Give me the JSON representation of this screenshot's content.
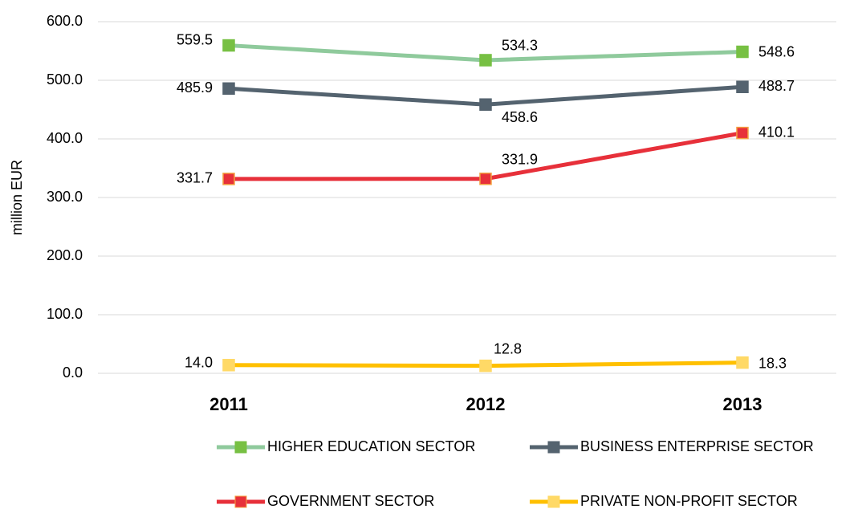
{
  "chart_data": {
    "type": "line",
    "y_label": "million EUR",
    "categories": [
      "2011",
      "2012",
      "2013"
    ],
    "series": [
      {
        "name": "HIGHER EDUCATION SECTOR",
        "color": "#8fca9c",
        "marker_color": "#77c043",
        "values": [
          559.5,
          534.3,
          548.6
        ],
        "value_labels": [
          "559.5",
          "534.3",
          "548.6"
        ]
      },
      {
        "name": "BUSINESS ENTERPRISE SECTOR",
        "color": "#54636f",
        "marker_color": "#54636f",
        "values": [
          485.9,
          458.6,
          488.7
        ],
        "value_labels": [
          "485.9",
          "458.6",
          "488.7"
        ]
      },
      {
        "name": "GOVERNMENT SECTOR",
        "color": "#e7303a",
        "marker_color": "#e7303a",
        "values": [
          331.7,
          331.9,
          410.1
        ],
        "value_labels": [
          "331.7",
          "331.9",
          "410.1"
        ]
      },
      {
        "name": "PRIVATE NON-PROFIT SECTOR",
        "color": "#ffc000",
        "marker_color": "#ffd966",
        "values": [
          14.0,
          12.8,
          18.3
        ],
        "value_labels": [
          "14.0",
          "12.8",
          "18.3"
        ]
      }
    ],
    "ylim": [
      0,
      600
    ],
    "yticks": [
      {
        "value": 0,
        "label": "0.0"
      },
      {
        "value": 100,
        "label": "100.0"
      },
      {
        "value": 200,
        "label": "200.0"
      },
      {
        "value": 300,
        "label": "300.0"
      },
      {
        "value": 400,
        "label": "400.0"
      },
      {
        "value": 500,
        "label": "500.0"
      },
      {
        "value": 600,
        "label": "600.0"
      }
    ],
    "grid": true
  }
}
